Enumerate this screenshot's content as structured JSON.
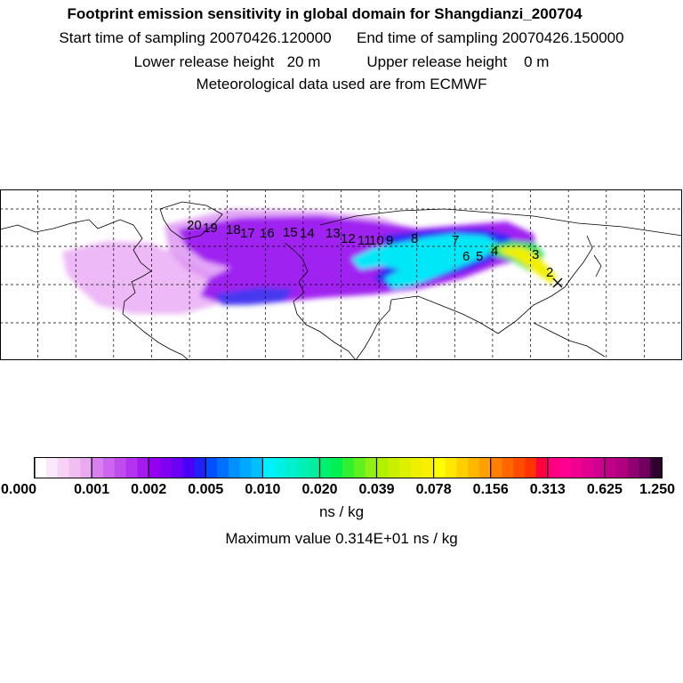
{
  "header": {
    "title": "Footprint emission sensitivity in global domain for Shangdianzi_200704",
    "start_label": "Start time of sampling",
    "start_value": "20070426.120000",
    "end_label": "End time of sampling",
    "end_value": "20070426.150000",
    "lower_label": "Lower release height",
    "lower_value": "20 m",
    "upper_label": "Upper release height",
    "upper_value": "0 m",
    "met_note": "Meteorological data used are from ECMWF"
  },
  "map": {
    "grid": true,
    "grid_style": "dashed",
    "day_labels": [
      "2",
      "3",
      "4",
      "5",
      "6",
      "7",
      "8",
      "9",
      "10",
      "11",
      "12",
      "13",
      "14",
      "15",
      "16",
      "17",
      "18",
      "19",
      "20"
    ],
    "site_marker": "x",
    "site_name": "Shangdianzi"
  },
  "legend": {
    "tick_labels": [
      "0.000",
      "0.001",
      "0.002",
      "0.005",
      "0.010",
      "0.020",
      "0.039",
      "0.078",
      "0.156",
      "0.313",
      "0.625",
      "1.250"
    ],
    "bins_per_interval": 5,
    "units": "ns / kg",
    "max_label": "Maximum value",
    "max_value": "0.314E+01 ns / kg",
    "colors": [
      "#ffffff",
      "#fbe8fb",
      "#f6d3f6",
      "#f0bff0",
      "#e9aaf0",
      "#d880f0",
      "#cc66ee",
      "#c04cee",
      "#b333ee",
      "#a51aee",
      "#9400f0",
      "#8000f2",
      "#6a00f4",
      "#4a00f6",
      "#2020f8",
      "#0050ff",
      "#0070ff",
      "#0090ff",
      "#00a8ff",
      "#00c0ff",
      "#00f0ff",
      "#00f0e8",
      "#00f0d0",
      "#00f0b8",
      "#00f0a0",
      "#00f070",
      "#00f050",
      "#30f030",
      "#60f020",
      "#90f010",
      "#b0f000",
      "#c8f000",
      "#dcf000",
      "#eef000",
      "#f8f000",
      "#ffff00",
      "#ffe800",
      "#ffd000",
      "#ffb800",
      "#ffa000",
      "#ff8000",
      "#ff6600",
      "#ff4c00",
      "#ff3300",
      "#ff0040",
      "#ff0080",
      "#ff0090",
      "#f00090",
      "#e00090",
      "#d00090",
      "#c00088",
      "#b00080",
      "#900070",
      "#700060",
      "#300030"
    ]
  }
}
